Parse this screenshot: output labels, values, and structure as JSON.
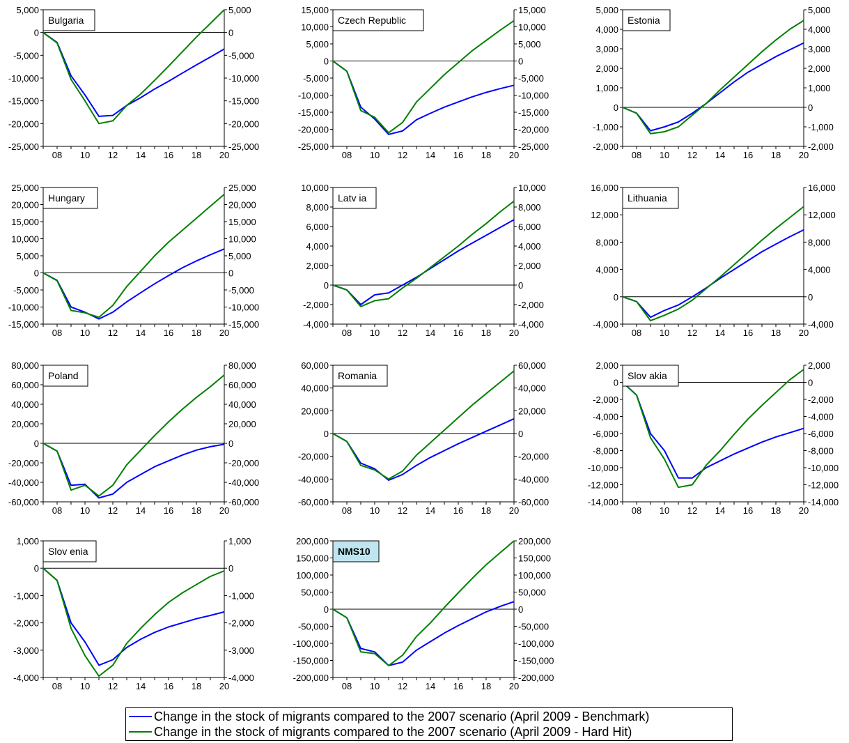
{
  "legend": {
    "benchmark": "Change in the stock of migrants compared to the 2007 scenario (April 2009 - Benchmark)",
    "hardhit": "Change in the stock of migrants compared to the 2007 scenario (April 2009 - Hard Hit)"
  },
  "colors": {
    "benchmark": "#0000ff",
    "hardhit": "#008000",
    "highlight_box": "#bfe6f0"
  },
  "chart_data": [
    {
      "type": "line",
      "title": "Bulgaria",
      "title_bold": false,
      "x": [
        2007,
        2008,
        2009,
        2010,
        2011,
        2012,
        2013,
        2014,
        2015,
        2016,
        2017,
        2018,
        2019,
        2020
      ],
      "x_ticks": [
        "08",
        "10",
        "12",
        "14",
        "16",
        "18",
        "20"
      ],
      "ylim": [
        -25000,
        5000
      ],
      "y_ticks": [
        5000,
        0,
        -5000,
        -10000,
        -15000,
        -20000,
        -25000
      ],
      "y_tick_labels": [
        "5,000",
        "0",
        "-5,000",
        "-10,000",
        "-15,000",
        "-20,000",
        "-25,000"
      ],
      "series": [
        {
          "key": "benchmark",
          "values": [
            0,
            -2200,
            -9500,
            -13700,
            -18400,
            -18200,
            -16000,
            -14300,
            -12400,
            -10700,
            -8900,
            -7100,
            -5400,
            -3600
          ]
        },
        {
          "key": "hardhit",
          "values": [
            0,
            -2300,
            -10300,
            -15000,
            -20000,
            -19400,
            -16000,
            -13500,
            -10500,
            -7400,
            -4200,
            -1000,
            2000,
            5000
          ]
        }
      ]
    },
    {
      "type": "line",
      "title": "Czech Republic",
      "title_bold": false,
      "x": [
        2007,
        2008,
        2009,
        2010,
        2011,
        2012,
        2013,
        2014,
        2015,
        2016,
        2017,
        2018,
        2019,
        2020
      ],
      "x_ticks": [
        "08",
        "10",
        "12",
        "14",
        "16",
        "18",
        "20"
      ],
      "ylim": [
        -25000,
        15000
      ],
      "y_ticks": [
        15000,
        10000,
        5000,
        0,
        -5000,
        -10000,
        -15000,
        -20000,
        -25000
      ],
      "y_tick_labels": [
        "15,000",
        "10,000",
        "5,000",
        "0",
        "-5,000",
        "-10,000",
        "-15,000",
        "-20,000",
        "-25,000"
      ],
      "series": [
        {
          "key": "benchmark",
          "values": [
            0,
            -3000,
            -13500,
            -17000,
            -21500,
            -20500,
            -17200,
            -15300,
            -13500,
            -12000,
            -10500,
            -9200,
            -8100,
            -7100
          ]
        },
        {
          "key": "hardhit",
          "values": [
            0,
            -3000,
            -14500,
            -16500,
            -21000,
            -18000,
            -12000,
            -8000,
            -4000,
            -500,
            3000,
            6000,
            9000,
            11800
          ]
        }
      ]
    },
    {
      "type": "line",
      "title": "Estonia",
      "title_bold": false,
      "x": [
        2007,
        2008,
        2009,
        2010,
        2011,
        2012,
        2013,
        2014,
        2015,
        2016,
        2017,
        2018,
        2019,
        2020
      ],
      "x_ticks": [
        "08",
        "10",
        "12",
        "14",
        "16",
        "18",
        "20"
      ],
      "ylim": [
        -2000,
        5000
      ],
      "y_ticks": [
        5000,
        4000,
        3000,
        2000,
        1000,
        0,
        -1000,
        -2000
      ],
      "y_tick_labels": [
        "5,000",
        "4,000",
        "3,000",
        "2,000",
        "1,000",
        "0",
        "-1,000",
        "-2,000"
      ],
      "series": [
        {
          "key": "benchmark",
          "values": [
            0,
            -300,
            -1200,
            -1000,
            -750,
            -300,
            200,
            750,
            1300,
            1800,
            2200,
            2600,
            2950,
            3300
          ]
        },
        {
          "key": "hardhit",
          "values": [
            0,
            -300,
            -1350,
            -1250,
            -1000,
            -400,
            200,
            900,
            1550,
            2200,
            2850,
            3450,
            4000,
            4450
          ]
        }
      ]
    },
    {
      "type": "line",
      "title": "Hungary",
      "title_bold": false,
      "x": [
        2007,
        2008,
        2009,
        2010,
        2011,
        2012,
        2013,
        2014,
        2015,
        2016,
        2017,
        2018,
        2019,
        2020
      ],
      "x_ticks": [
        "08",
        "10",
        "12",
        "14",
        "16",
        "18",
        "20"
      ],
      "ylim": [
        -15000,
        25000
      ],
      "y_ticks": [
        25000,
        20000,
        15000,
        10000,
        5000,
        0,
        -5000,
        -10000,
        -15000
      ],
      "y_tick_labels": [
        "25,000",
        "20,000",
        "15,000",
        "10,000",
        "5,000",
        "0",
        "-5,000",
        "-10,000",
        "-15,000"
      ],
      "series": [
        {
          "key": "benchmark",
          "values": [
            0,
            -2200,
            -10000,
            -11500,
            -13500,
            -11500,
            -8500,
            -5800,
            -3200,
            -800,
            1500,
            3500,
            5300,
            7000
          ]
        },
        {
          "key": "hardhit",
          "values": [
            0,
            -2300,
            -11000,
            -11700,
            -13000,
            -9500,
            -4000,
            500,
            5000,
            9000,
            12500,
            16000,
            19500,
            23000
          ]
        }
      ]
    },
    {
      "type": "line",
      "title": "Latv ia",
      "title_bold": false,
      "x": [
        2007,
        2008,
        2009,
        2010,
        2011,
        2012,
        2013,
        2014,
        2015,
        2016,
        2017,
        2018,
        2019,
        2020
      ],
      "x_ticks": [
        "08",
        "10",
        "12",
        "14",
        "16",
        "18",
        "20"
      ],
      "ylim": [
        -4000,
        10000
      ],
      "y_ticks": [
        10000,
        8000,
        6000,
        4000,
        2000,
        0,
        -2000,
        -4000
      ],
      "y_tick_labels": [
        "10,000",
        "8,000",
        "6,000",
        "4,000",
        "2,000",
        "0",
        "-2,000",
        "-4,000"
      ],
      "series": [
        {
          "key": "benchmark",
          "values": [
            0,
            -500,
            -2000,
            -1000,
            -800,
            0,
            800,
            1700,
            2600,
            3500,
            4300,
            5100,
            5900,
            6700
          ]
        },
        {
          "key": "hardhit",
          "values": [
            0,
            -500,
            -2200,
            -1600,
            -1400,
            -300,
            700,
            1800,
            2900,
            4000,
            5200,
            6300,
            7500,
            8600
          ]
        }
      ]
    },
    {
      "type": "line",
      "title": "Lithuania",
      "title_bold": false,
      "x": [
        2007,
        2008,
        2009,
        2010,
        2011,
        2012,
        2013,
        2014,
        2015,
        2016,
        2017,
        2018,
        2019,
        2020
      ],
      "x_ticks": [
        "08",
        "10",
        "12",
        "14",
        "16",
        "18",
        "20"
      ],
      "ylim": [
        -4000,
        16000
      ],
      "y_ticks": [
        16000,
        12000,
        8000,
        4000,
        0,
        -4000
      ],
      "y_tick_labels": [
        "16,000",
        "12,000",
        "8,000",
        "4,000",
        "0",
        "-4,000"
      ],
      "series": [
        {
          "key": "benchmark",
          "values": [
            0,
            -700,
            -3000,
            -2000,
            -1200,
            0,
            1300,
            2700,
            4000,
            5300,
            6600,
            7700,
            8800,
            9800
          ]
        },
        {
          "key": "hardhit",
          "values": [
            0,
            -700,
            -3500,
            -2700,
            -1800,
            -500,
            1200,
            2900,
            4700,
            6500,
            8300,
            10000,
            11600,
            13200
          ]
        }
      ]
    },
    {
      "type": "line",
      "title": "Poland",
      "title_bold": false,
      "x": [
        2007,
        2008,
        2009,
        2010,
        2011,
        2012,
        2013,
        2014,
        2015,
        2016,
        2017,
        2018,
        2019,
        2020
      ],
      "x_ticks": [
        "08",
        "10",
        "12",
        "14",
        "16",
        "18",
        "20"
      ],
      "ylim": [
        -60000,
        80000
      ],
      "y_ticks": [
        80000,
        60000,
        40000,
        20000,
        0,
        -20000,
        -40000,
        -60000
      ],
      "y_tick_labels": [
        "80,000",
        "60,000",
        "40,000",
        "20,000",
        "0",
        "-20,000",
        "-40,000",
        "-60,000"
      ],
      "series": [
        {
          "key": "benchmark",
          "values": [
            0,
            -8000,
            -43000,
            -42000,
            -56000,
            -52000,
            -40000,
            -32000,
            -24000,
            -18000,
            -12000,
            -7000,
            -3500,
            -1000
          ]
        },
        {
          "key": "hardhit",
          "values": [
            0,
            -8000,
            -48000,
            -43000,
            -54000,
            -43000,
            -22000,
            -7000,
            8000,
            22000,
            35000,
            47000,
            58000,
            70000
          ]
        }
      ]
    },
    {
      "type": "line",
      "title": "Romania",
      "title_bold": false,
      "x": [
        2007,
        2008,
        2009,
        2010,
        2011,
        2012,
        2013,
        2014,
        2015,
        2016,
        2017,
        2018,
        2019,
        2020
      ],
      "x_ticks": [
        "08",
        "10",
        "12",
        "14",
        "16",
        "18",
        "20"
      ],
      "ylim": [
        -60000,
        60000
      ],
      "y_ticks": [
        60000,
        40000,
        20000,
        0,
        -20000,
        -40000,
        -60000
      ],
      "y_tick_labels": [
        "60,000",
        "40,000",
        "20,000",
        "0",
        "-20,000",
        "-40,000",
        "-60,000"
      ],
      "series": [
        {
          "key": "benchmark",
          "values": [
            0,
            -7000,
            -26000,
            -31000,
            -41000,
            -36000,
            -28000,
            -21000,
            -15000,
            -9000,
            -3500,
            2000,
            7500,
            13000
          ]
        },
        {
          "key": "hardhit",
          "values": [
            0,
            -7000,
            -28000,
            -32000,
            -40000,
            -33000,
            -19000,
            -8000,
            3000,
            14000,
            25000,
            35000,
            45000,
            55000
          ]
        }
      ]
    },
    {
      "type": "line",
      "title": "Slov akia",
      "title_bold": false,
      "x": [
        2007,
        2008,
        2009,
        2010,
        2011,
        2012,
        2013,
        2014,
        2015,
        2016,
        2017,
        2018,
        2019,
        2020
      ],
      "x_ticks": [
        "08",
        "10",
        "12",
        "14",
        "16",
        "18",
        "20"
      ],
      "ylim": [
        -14000,
        2000
      ],
      "y_ticks": [
        2000,
        0,
        -2000,
        -4000,
        -6000,
        -8000,
        -10000,
        -12000,
        -14000
      ],
      "y_tick_labels": [
        "2,000",
        "0",
        "-2,000",
        "-4,000",
        "-6,000",
        "-8,000",
        "-10,000",
        "-12,000",
        "-14,000"
      ],
      "series": [
        {
          "key": "benchmark",
          "values": [
            0,
            -1500,
            -6000,
            -8000,
            -11200,
            -11200,
            -10000,
            -9200,
            -8400,
            -7700,
            -7000,
            -6400,
            -5900,
            -5400
          ]
        },
        {
          "key": "hardhit",
          "values": [
            0,
            -1500,
            -6500,
            -9000,
            -12300,
            -12000,
            -9700,
            -8000,
            -6100,
            -4300,
            -2700,
            -1200,
            300,
            1500
          ]
        }
      ]
    },
    {
      "type": "line",
      "title": "Slov enia",
      "title_bold": false,
      "x": [
        2007,
        2008,
        2009,
        2010,
        2011,
        2012,
        2013,
        2014,
        2015,
        2016,
        2017,
        2018,
        2019,
        2020
      ],
      "x_ticks": [
        "08",
        "10",
        "12",
        "14",
        "16",
        "18",
        "20"
      ],
      "ylim": [
        -4000,
        1000
      ],
      "y_ticks": [
        1000,
        0,
        -1000,
        -2000,
        -3000,
        -4000
      ],
      "y_tick_labels": [
        "1,000",
        "0",
        "-1,000",
        "-2,000",
        "-3,000",
        "-4,000"
      ],
      "series": [
        {
          "key": "benchmark",
          "values": [
            0,
            -450,
            -2000,
            -2700,
            -3550,
            -3350,
            -2900,
            -2600,
            -2350,
            -2150,
            -2000,
            -1850,
            -1730,
            -1600
          ]
        },
        {
          "key": "hardhit",
          "values": [
            0,
            -450,
            -2200,
            -3200,
            -3950,
            -3550,
            -2750,
            -2200,
            -1700,
            -1250,
            -900,
            -600,
            -300,
            -100
          ]
        }
      ]
    },
    {
      "type": "line",
      "title": "NMS10",
      "title_bold": true,
      "x": [
        2007,
        2008,
        2009,
        2010,
        2011,
        2012,
        2013,
        2014,
        2015,
        2016,
        2017,
        2018,
        2019,
        2020
      ],
      "x_ticks": [
        "08",
        "10",
        "12",
        "14",
        "16",
        "18",
        "20"
      ],
      "ylim": [
        -200000,
        200000
      ],
      "y_ticks": [
        200000,
        150000,
        100000,
        50000,
        0,
        -50000,
        -100000,
        -150000,
        -200000
      ],
      "y_tick_labels": [
        "200,000",
        "150,000",
        "100,000",
        "50,000",
        "0",
        "-50,000",
        "-100,000",
        "-150,000",
        "-200,000"
      ],
      "series": [
        {
          "key": "benchmark",
          "values": [
            0,
            -25000,
            -115000,
            -125000,
            -165000,
            -155000,
            -120000,
            -95000,
            -70000,
            -48000,
            -28000,
            -8000,
            8000,
            22000
          ]
        },
        {
          "key": "hardhit",
          "values": [
            0,
            -25000,
            -125000,
            -130000,
            -165000,
            -135000,
            -80000,
            -40000,
            5000,
            48000,
            90000,
            130000,
            165000,
            200000
          ]
        }
      ]
    }
  ]
}
